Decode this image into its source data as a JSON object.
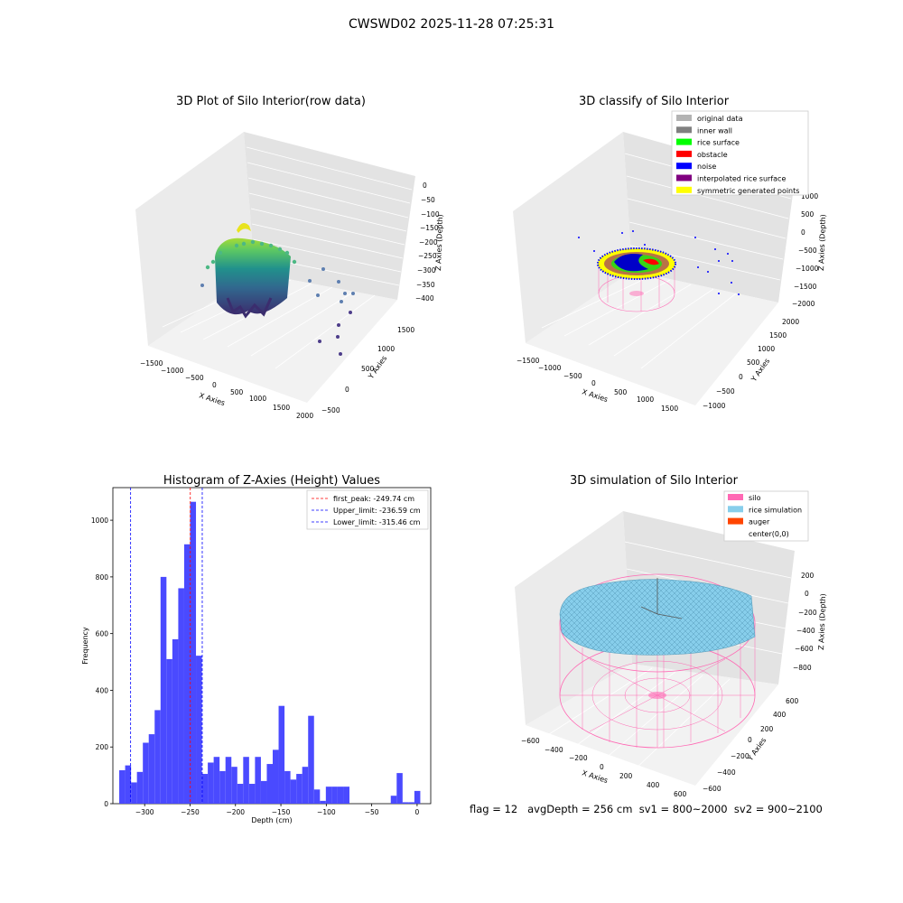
{
  "suptitle": "CWSWD02 2025-11-28 07:25:31",
  "footer": "flag = 12   avgDepth = 256 cm  sv1 = 800~2000  sv2 = 900~2100",
  "colors": {
    "original": "#b3b3b3",
    "inner_wall": "#808080",
    "rice_surface": "#00ff00",
    "obstacle": "#ff0000",
    "noise": "#0000ff",
    "interpolated": "#800080",
    "symmetric": "#ffff00",
    "silo": "#ff69b4",
    "rice_sim": "#87ceeb",
    "auger": "#ff4500",
    "hist": "#4a4aff"
  },
  "chart_data": [
    {
      "type": "scatter3d",
      "title": "3D Plot of Silo Interior(row data)",
      "xlabel": "X Axies",
      "ylabel": "Y Axies",
      "zlabel": "Z Axies (Depth)",
      "xticks": [
        "−1500",
        "−1000",
        "−500",
        "0",
        "500",
        "1000",
        "1500",
        "2000"
      ],
      "yticks": [
        "−500",
        "0",
        "500",
        "1000",
        "1500"
      ],
      "zticks": [
        "0",
        "−50",
        "−100",
        "−150",
        "−200",
        "−250",
        "−300",
        "−350",
        "−400"
      ]
    },
    {
      "type": "scatter3d",
      "title": "3D classify of Silo Interior",
      "xlabel": "X Axies",
      "ylabel": "Y Axies",
      "zlabel": "Z Axies (Depth)",
      "xticks": [
        "−1500",
        "−1000",
        "−500",
        "0",
        "500",
        "1000",
        "1500"
      ],
      "yticks": [
        "−1000",
        "−500",
        "0",
        "500",
        "1000",
        "1500",
        "2000"
      ],
      "zticks": [
        "1000",
        "500",
        "0",
        "−500",
        "−1000",
        "−1500",
        "−2000"
      ],
      "legend_position": "top-right",
      "legend": [
        "original data",
        "inner wall",
        "rice surface",
        "obstacle",
        "noise",
        "interpolated rice surface",
        "symmetric generated points"
      ]
    },
    {
      "type": "bar",
      "title": "Histogram of Z-Axies (Height) Values",
      "xlabel": "Depth (cm)",
      "ylabel": "Frequency",
      "xlim": [
        -335,
        15
      ],
      "ylim": [
        0,
        1115
      ],
      "xticks": [
        -300,
        -250,
        -200,
        -150,
        -100,
        -50,
        0
      ],
      "xtick_labels": [
        "−300",
        "−250",
        "−200",
        "−150",
        "−100",
        "−50",
        "0"
      ],
      "yticks": [
        0,
        200,
        400,
        600,
        800,
        1000
      ],
      "bin_width": 6.5,
      "bin_starts": [
        -328,
        -321.5,
        -315,
        -308.5,
        -302,
        -295.5,
        -289,
        -282.5,
        -276,
        -269.5,
        -263,
        -256.5,
        -250,
        -243.5,
        -237,
        -230.5,
        -224,
        -217.5,
        -211,
        -204.5,
        -198,
        -191.5,
        -185,
        -178.5,
        -172,
        -165.5,
        -159,
        -152.5,
        -146,
        -139.5,
        -133,
        -126.5,
        -120,
        -113.5,
        -107,
        -100.5,
        -94,
        -87.5,
        -81,
        -74.5,
        -68,
        -61.5,
        -55,
        -48.5,
        -42,
        -35.5,
        -29,
        -22.5,
        -16,
        -9.5,
        -3
      ],
      "values": [
        118,
        135,
        75,
        112,
        215,
        245,
        330,
        800,
        510,
        580,
        760,
        915,
        1065,
        522,
        105,
        145,
        165,
        115,
        165,
        130,
        70,
        165,
        70,
        165,
        80,
        140,
        190,
        345,
        115,
        85,
        105,
        130,
        310,
        50,
        10,
        60,
        60,
        60,
        60,
        0,
        0,
        0,
        0,
        0,
        0,
        0,
        28,
        108,
        5,
        5,
        45
      ],
      "vlines": [
        {
          "x": -249.74,
          "label": "first_peak: -249.74 cm",
          "color": "#ff0000"
        },
        {
          "x": -236.59,
          "label": "Upper_limit: -236.59 cm",
          "color": "#0000ff"
        },
        {
          "x": -315.46,
          "label": "Lower_limit: -315.46 cm",
          "color": "#0000ff"
        }
      ],
      "legend_position": "top-right"
    },
    {
      "type": "surface3d",
      "title": "3D simulation of Silo Interior",
      "xlabel": "X Axies",
      "ylabel": "Y Axies",
      "zlabel": "Z Axies (Depth)",
      "xticks": [
        "−600",
        "−400",
        "−200",
        "0",
        "200",
        "400",
        "600"
      ],
      "yticks": [
        "−600",
        "−400",
        "−200",
        "0",
        "200",
        "400",
        "600"
      ],
      "zticks": [
        "200",
        "0",
        "−200",
        "−400",
        "−600",
        "−800"
      ],
      "legend_position": "top-right",
      "legend": [
        "silo",
        "rice simulation",
        "auger",
        "center(0,0)"
      ]
    }
  ]
}
